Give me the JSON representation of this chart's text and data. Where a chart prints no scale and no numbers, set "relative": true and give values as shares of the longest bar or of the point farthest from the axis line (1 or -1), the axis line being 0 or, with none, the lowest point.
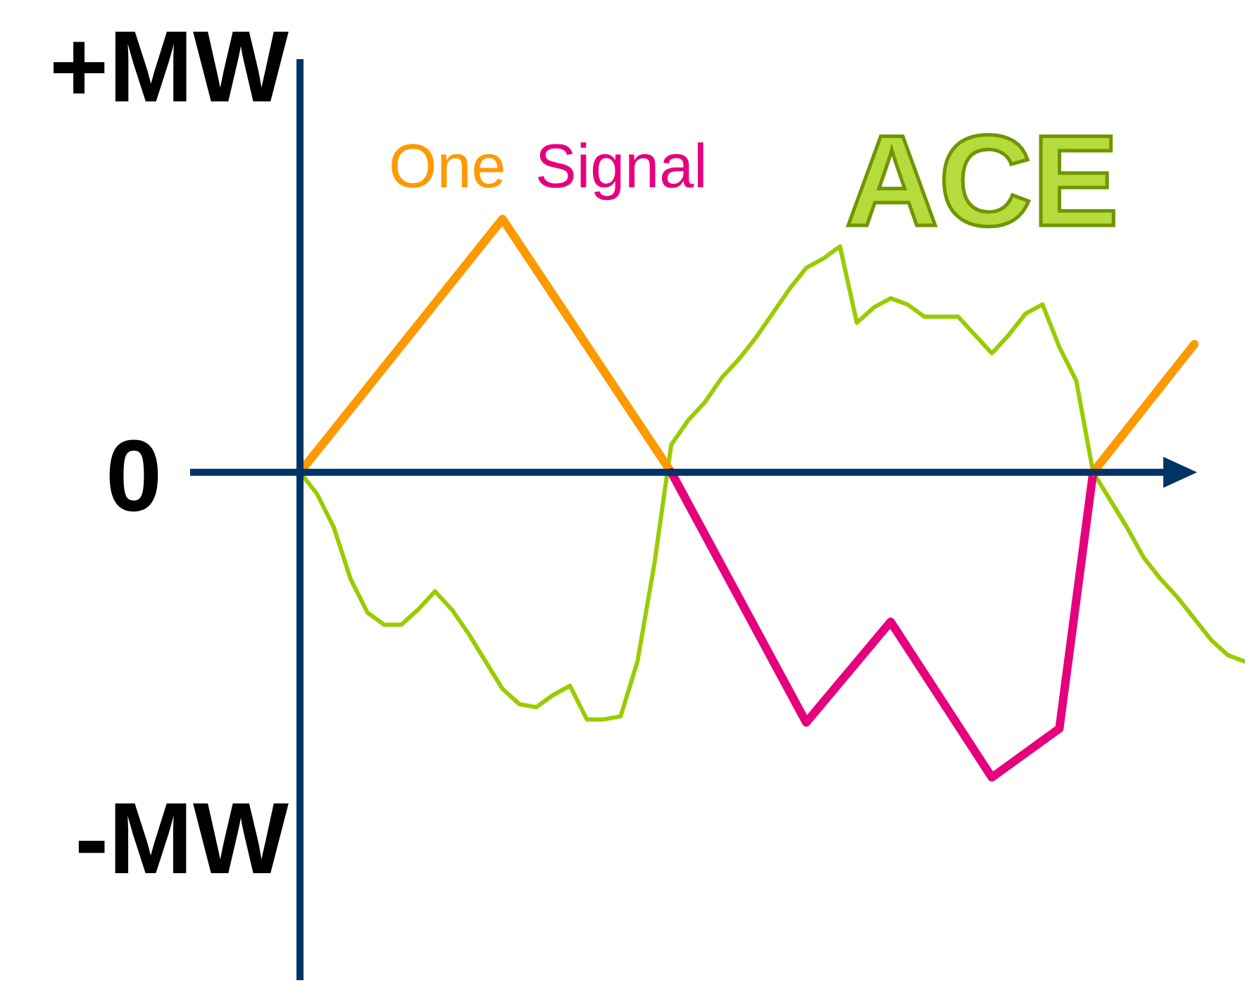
{
  "chart_data": {
    "type": "line",
    "relative": true,
    "categories": [
      null,
      null,
      null,
      null,
      null,
      null,
      null,
      null,
      null,
      null,
      null,
      null,
      null,
      null,
      null,
      null,
      null,
      null,
      null,
      null,
      null,
      null,
      null,
      null,
      null,
      null,
      null,
      null,
      null,
      null,
      null,
      null,
      null,
      null,
      null,
      null,
      null,
      null,
      null,
      null,
      null,
      null,
      null,
      null,
      null,
      null,
      null,
      null,
      null,
      null,
      null,
      null,
      null,
      null,
      null,
      null,
      null
    ],
    "series": [
      {
        "name": "ACE",
        "color": "#99cc00",
        "values": [
          0,
          -0.07,
          -0.18,
          -0.35,
          -0.46,
          -0.5,
          -0.5,
          -0.45,
          -0.39,
          -0.45,
          -0.53,
          -0.62,
          -0.71,
          -0.76,
          -0.77,
          -0.73,
          -0.7,
          -0.81,
          -0.81,
          -0.8,
          -0.62,
          -0.3,
          0.09,
          0.17,
          0.23,
          0.31,
          0.37,
          0.44,
          0.52,
          0.6,
          0.67,
          0.7,
          0.74,
          0.49,
          0.54,
          0.57,
          0.55,
          0.51,
          0.51,
          0.51,
          0.45,
          0.39,
          0.45,
          0.52,
          0.55,
          0.41,
          0.3,
          0,
          -0.09,
          -0.18,
          -0.28,
          -0.35,
          -0.41,
          -0.48,
          -0.55,
          -0.6,
          -0.62
        ]
      },
      {
        "name": "One",
        "color": "#ff9900",
        "values": [
          0,
          null,
          null,
          null,
          null,
          null,
          null,
          null,
          null,
          null,
          null,
          null,
          0.83,
          null,
          null,
          null,
          null,
          null,
          null,
          null,
          null,
          null,
          0,
          null,
          null,
          null,
          null,
          null,
          null,
          null,
          null,
          null,
          null,
          null,
          null,
          null,
          null,
          null,
          null,
          null,
          null,
          null,
          null,
          null,
          null,
          null,
          null,
          null,
          null,
          null,
          null,
          null,
          null,
          null,
          null,
          null,
          null
        ]
      },
      {
        "name": "Signal",
        "color": "#e6007e",
        "values": [
          null,
          null,
          null,
          null,
          null,
          null,
          null,
          null,
          null,
          null,
          null,
          null,
          null,
          null,
          null,
          null,
          null,
          null,
          null,
          null,
          null,
          null,
          0,
          null,
          null,
          null,
          null,
          null,
          null,
          null,
          -0.82,
          null,
          null,
          null,
          null,
          -0.49,
          null,
          null,
          null,
          null,
          null,
          -1,
          null,
          null,
          null,
          -0.84,
          null,
          0,
          null,
          null,
          null,
          null,
          null,
          null,
          null,
          null,
          null
        ]
      },
      {
        "color": "#ff9900",
        "values": [
          null,
          null,
          null,
          null,
          null,
          null,
          null,
          null,
          null,
          null,
          null,
          null,
          null,
          null,
          null,
          null,
          null,
          null,
          null,
          null,
          null,
          null,
          null,
          null,
          null,
          null,
          null,
          null,
          null,
          null,
          null,
          null,
          null,
          null,
          null,
          null,
          null,
          null,
          null,
          null,
          null,
          null,
          null,
          null,
          null,
          null,
          null,
          0,
          null,
          null,
          null,
          null,
          null,
          0.42,
          null,
          null,
          null
        ]
      }
    ],
    "ref_lines": [
      {
        "axis": "y",
        "value": 0,
        "color": "#003366"
      }
    ],
    "annotations": [
      "+MW",
      "0",
      "-MW"
    ]
  }
}
